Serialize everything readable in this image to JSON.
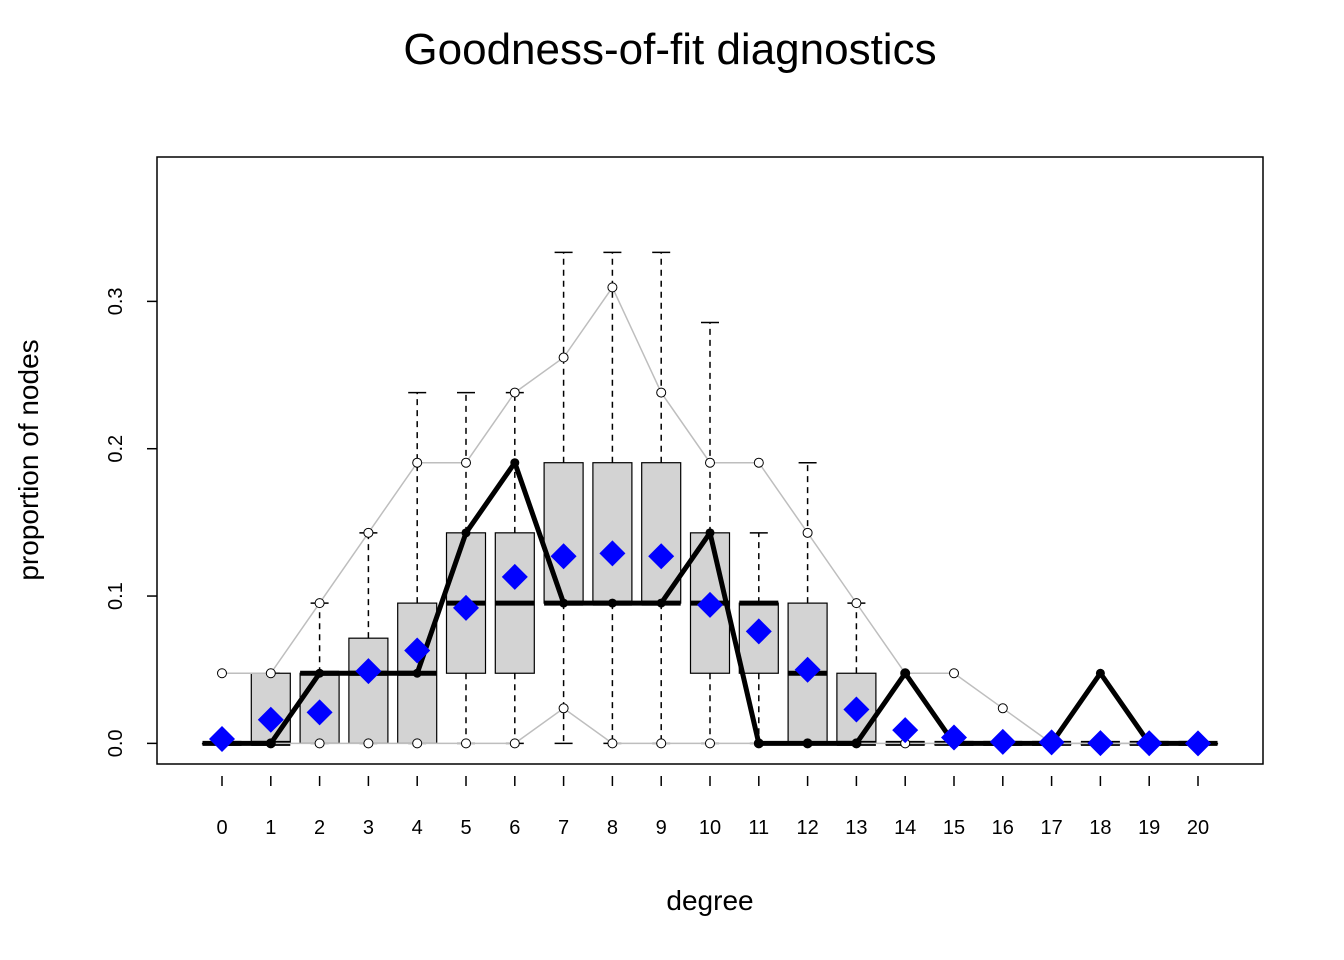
{
  "chart_data": {
    "type": "boxplot",
    "title": "Goodness-of-fit diagnostics",
    "xlabel": "degree",
    "ylabel": "proportion of nodes",
    "categories": [
      "0",
      "1",
      "2",
      "3",
      "4",
      "5",
      "6",
      "7",
      "8",
      "9",
      "10",
      "11",
      "12",
      "13",
      "14",
      "15",
      "16",
      "17",
      "18",
      "19",
      "20"
    ],
    "ylim": [
      -0.014,
      0.398
    ],
    "yticks": [
      0.0,
      0.1,
      0.2,
      0.3
    ],
    "ytick_labels": [
      "0.0",
      "0.1",
      "0.2",
      "0.3"
    ],
    "boxes": [
      {
        "q1": 0,
        "median": 0,
        "q3": 0,
        "lower": 0,
        "upper": 0
      },
      {
        "q1": 0,
        "median": 0,
        "q3": 0.0476,
        "lower": 0,
        "upper": 0.0476
      },
      {
        "q1": 0,
        "median": 0.0476,
        "q3": 0.0476,
        "lower": 0,
        "upper": 0.0952
      },
      {
        "q1": 0,
        "median": 0.0476,
        "q3": 0.0714,
        "lower": 0,
        "upper": 0.1429
      },
      {
        "q1": 0,
        "median": 0.0476,
        "q3": 0.0952,
        "lower": 0,
        "upper": 0.2381
      },
      {
        "q1": 0.0476,
        "median": 0.0952,
        "q3": 0.1429,
        "lower": 0,
        "upper": 0.2381
      },
      {
        "q1": 0.0476,
        "median": 0.0952,
        "q3": 0.1429,
        "lower": 0,
        "upper": 0.2381
      },
      {
        "q1": 0.0952,
        "median": 0.0952,
        "q3": 0.1905,
        "lower": 0,
        "upper": 0.3333
      },
      {
        "q1": 0.0952,
        "median": 0.0952,
        "q3": 0.1905,
        "lower": 0,
        "upper": 0.3333
      },
      {
        "q1": 0.0952,
        "median": 0.0952,
        "q3": 0.1905,
        "lower": 0,
        "upper": 0.3333
      },
      {
        "q1": 0.0476,
        "median": 0.0952,
        "q3": 0.1429,
        "lower": 0,
        "upper": 0.2857
      },
      {
        "q1": 0.0476,
        "median": 0.0952,
        "q3": 0.0952,
        "lower": 0,
        "upper": 0.1429
      },
      {
        "q1": 0,
        "median": 0.0476,
        "q3": 0.0952,
        "lower": 0,
        "upper": 0.1905
      },
      {
        "q1": 0,
        "median": 0,
        "q3": 0.0476,
        "lower": 0,
        "upper": 0.0952
      },
      {
        "q1": 0,
        "median": 0,
        "q3": 0,
        "lower": 0,
        "upper": 0
      },
      {
        "q1": 0,
        "median": 0,
        "q3": 0,
        "lower": 0,
        "upper": 0
      },
      {
        "q1": 0,
        "median": 0,
        "q3": 0,
        "lower": 0,
        "upper": 0
      },
      {
        "q1": 0,
        "median": 0,
        "q3": 0,
        "lower": 0,
        "upper": 0
      },
      {
        "q1": 0,
        "median": 0,
        "q3": 0,
        "lower": 0,
        "upper": 0
      },
      {
        "q1": 0,
        "median": 0,
        "q3": 0,
        "lower": 0,
        "upper": 0
      },
      {
        "q1": 0,
        "median": 0,
        "q3": 0,
        "lower": 0,
        "upper": 0
      }
    ],
    "observed": [
      0,
      0,
      0.0476,
      0.0476,
      0.0476,
      0.1429,
      0.1905,
      0.0952,
      0.0952,
      0.0952,
      0.1429,
      0,
      0,
      0,
      0.0476,
      0,
      0,
      0,
      0.0476,
      0,
      0
    ],
    "simulated_mean": [
      0.003,
      0.016,
      0.021,
      0.049,
      0.063,
      0.092,
      0.113,
      0.127,
      0.129,
      0.127,
      0.094,
      0.076,
      0.05,
      0.023,
      0.009,
      0.004,
      0.001,
      0.0007,
      0.0002,
      0.0001,
      3e-05
    ],
    "band_upper": [
      0.0476,
      0.0476,
      0.0952,
      0.1429,
      0.1905,
      0.1905,
      0.2381,
      0.2619,
      0.3095,
      0.2381,
      0.1905,
      0.1905,
      0.1429,
      0.0952,
      0.0476,
      0.0476,
      0.0238,
      0,
      0,
      0,
      0
    ],
    "band_lower": [
      0,
      0,
      0,
      0,
      0,
      0,
      0,
      0.0238,
      0,
      0,
      0,
      0,
      0,
      0,
      0,
      0,
      0,
      0,
      0,
      0,
      0
    ],
    "colors": {
      "box_fill": "#d3d3d3",
      "observed": "#000000",
      "mean_marker": "#0000ff",
      "band": "#bebebe"
    }
  }
}
